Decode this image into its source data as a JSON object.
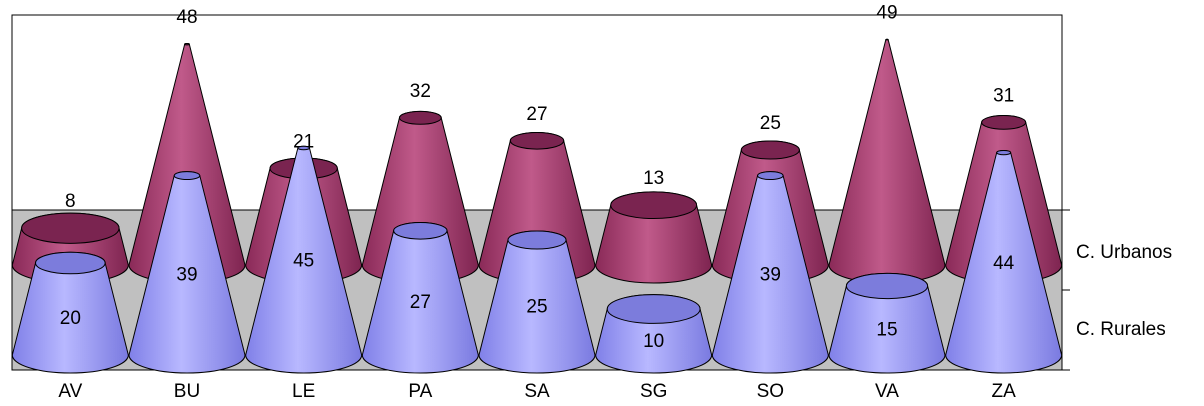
{
  "chart_data": {
    "type": "cone3d",
    "categories": [
      "AV",
      "BU",
      "LE",
      "PA",
      "SA",
      "SG",
      "SO",
      "VA",
      "ZA"
    ],
    "series": [
      {
        "name": "C. Rurales",
        "color": "#9999ff",
        "values": [
          20,
          39,
          45,
          27,
          25,
          10,
          39,
          15,
          44
        ]
      },
      {
        "name": "C. Urbanos",
        "color": "#993366",
        "values": [
          8,
          48,
          21,
          32,
          27,
          13,
          25,
          49,
          31
        ]
      }
    ],
    "ylim": [
      0,
      50
    ]
  }
}
